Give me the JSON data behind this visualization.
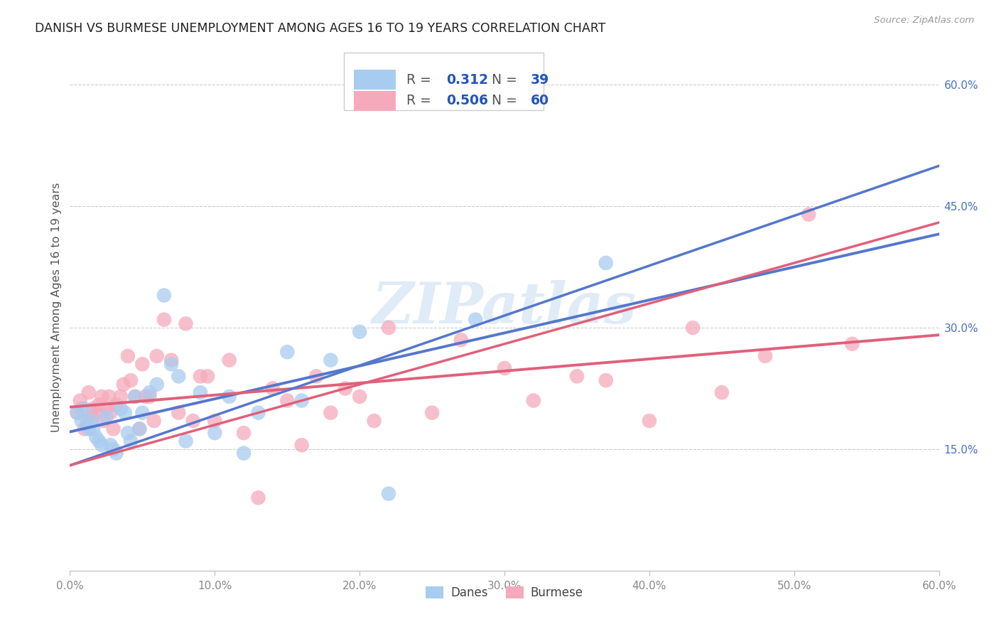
{
  "title": "DANISH VS BURMESE UNEMPLOYMENT AMONG AGES 16 TO 19 YEARS CORRELATION CHART",
  "source": "Source: ZipAtlas.com",
  "ylabel": "Unemployment Among Ages 16 to 19 years",
  "xlim": [
    0.0,
    0.6
  ],
  "ylim": [
    0.0,
    0.65
  ],
  "yticks": [
    0.15,
    0.3,
    0.45,
    0.6
  ],
  "ytick_labels": [
    "15.0%",
    "30.0%",
    "45.0%",
    "60.0%"
  ],
  "xtick_labels": [
    "0.0%",
    "10.0%",
    "20.0%",
    "30.0%",
    "40.0%",
    "50.0%",
    "60.0%"
  ],
  "danes_color": "#A8CCF0",
  "burmese_color": "#F5AABB",
  "danes_line_color": "#5577CC",
  "danes_line_dash_color": "#AABBDD",
  "burmese_line_color": "#E0607A",
  "danes_R": "0.312",
  "danes_N": "39",
  "burmese_R": "0.506",
  "burmese_N": "60",
  "r_n_color": "#2255BB",
  "label_color": "#555555",
  "legend_label_danes": "Danes",
  "legend_label_burmese": "Burmese",
  "watermark": "ZIPatlas",
  "watermark_color": "#C5DBF0",
  "danes_x": [
    0.005,
    0.008,
    0.01,
    0.012,
    0.013,
    0.015,
    0.016,
    0.018,
    0.02,
    0.022,
    0.025,
    0.028,
    0.03,
    0.032,
    0.035,
    0.038,
    0.04,
    0.042,
    0.045,
    0.048,
    0.05,
    0.055,
    0.06,
    0.065,
    0.07,
    0.075,
    0.08,
    0.09,
    0.1,
    0.11,
    0.12,
    0.13,
    0.15,
    0.16,
    0.18,
    0.2,
    0.22,
    0.28,
    0.37
  ],
  "danes_y": [
    0.195,
    0.185,
    0.2,
    0.18,
    0.175,
    0.185,
    0.175,
    0.165,
    0.16,
    0.155,
    0.19,
    0.155,
    0.15,
    0.145,
    0.2,
    0.195,
    0.17,
    0.16,
    0.215,
    0.175,
    0.195,
    0.22,
    0.23,
    0.34,
    0.255,
    0.24,
    0.16,
    0.22,
    0.17,
    0.215,
    0.145,
    0.195,
    0.27,
    0.21,
    0.26,
    0.295,
    0.095,
    0.31,
    0.38
  ],
  "burmese_x": [
    0.005,
    0.007,
    0.008,
    0.01,
    0.012,
    0.013,
    0.015,
    0.016,
    0.018,
    0.02,
    0.022,
    0.023,
    0.025,
    0.027,
    0.028,
    0.03,
    0.032,
    0.035,
    0.037,
    0.04,
    0.042,
    0.045,
    0.048,
    0.05,
    0.052,
    0.055,
    0.058,
    0.06,
    0.065,
    0.07,
    0.075,
    0.08,
    0.085,
    0.09,
    0.095,
    0.1,
    0.11,
    0.12,
    0.13,
    0.14,
    0.15,
    0.16,
    0.17,
    0.18,
    0.19,
    0.2,
    0.21,
    0.22,
    0.25,
    0.27,
    0.3,
    0.32,
    0.35,
    0.37,
    0.4,
    0.43,
    0.45,
    0.48,
    0.51,
    0.54
  ],
  "burmese_y": [
    0.195,
    0.21,
    0.2,
    0.175,
    0.185,
    0.22,
    0.19,
    0.2,
    0.195,
    0.205,
    0.215,
    0.185,
    0.2,
    0.215,
    0.195,
    0.175,
    0.205,
    0.215,
    0.23,
    0.265,
    0.235,
    0.215,
    0.175,
    0.255,
    0.215,
    0.215,
    0.185,
    0.265,
    0.31,
    0.26,
    0.195,
    0.305,
    0.185,
    0.24,
    0.24,
    0.185,
    0.26,
    0.17,
    0.09,
    0.225,
    0.21,
    0.155,
    0.24,
    0.195,
    0.225,
    0.215,
    0.185,
    0.3,
    0.195,
    0.285,
    0.25,
    0.21,
    0.24,
    0.235,
    0.185,
    0.3,
    0.22,
    0.265,
    0.44,
    0.28
  ]
}
